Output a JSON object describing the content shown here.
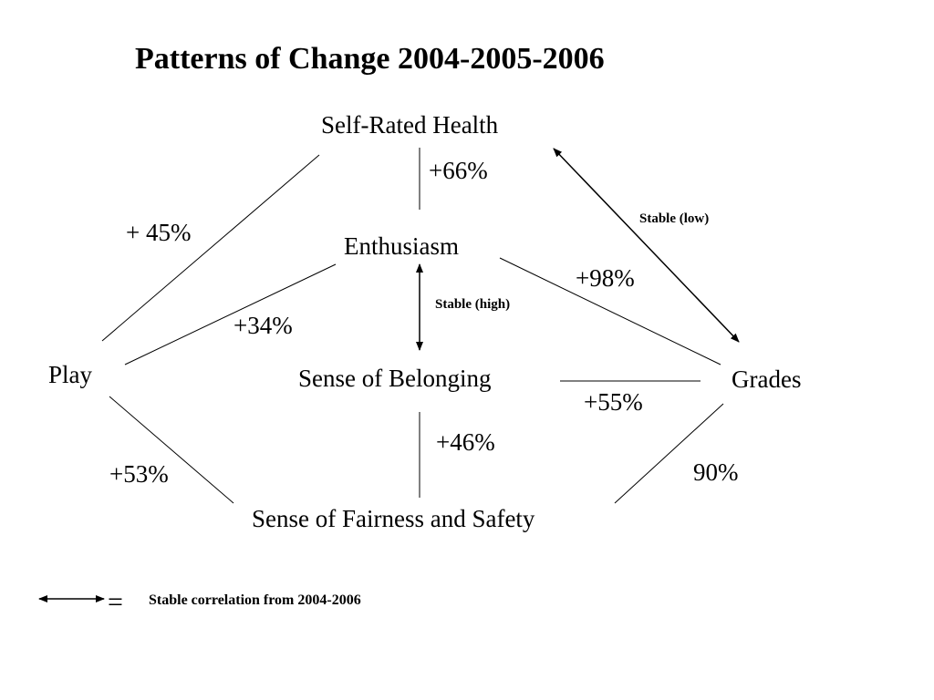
{
  "title": "Patterns of Change 2004-2005-2006",
  "nodes": {
    "self_rated_health": "Self-Rated Health",
    "enthusiasm": "Enthusiasm",
    "sense_of_belonging": "Sense of Belonging",
    "sense_of_fairness_and_safety": "Sense of Fairness and Safety",
    "play": "Play",
    "grades": "Grades"
  },
  "links": {
    "play_self_rated_health": "+ 45%",
    "self_rated_health_enthusiasm": "+66%",
    "play_enthusiasm": "+34%",
    "enthusiasm_grades": "+98%",
    "enthusiasm_belonging": "Stable (high)",
    "self_rated_health_grades": "Stable (low)",
    "belonging_grades": "+55%",
    "belonging_fairness": "+46%",
    "play_fairness": "+53%",
    "fairness_grades": "90%"
  },
  "legend": {
    "equals": "=",
    "text": "Stable correlation from 2004-2006"
  },
  "colors": {
    "lines": "#000000",
    "text": "#000000",
    "background": "#ffffff"
  }
}
